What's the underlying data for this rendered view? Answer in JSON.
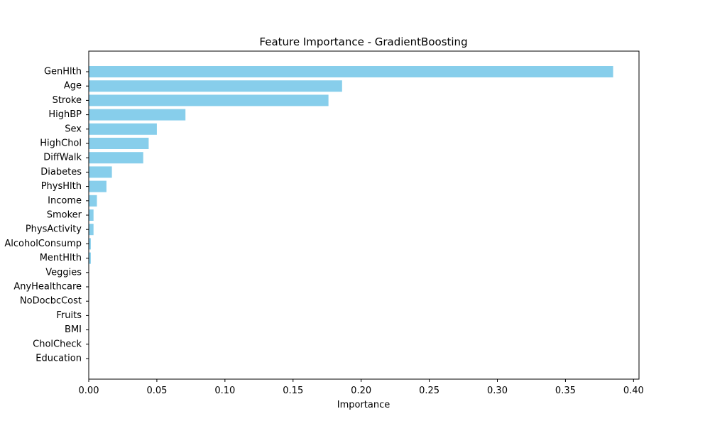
{
  "chart_data": {
    "type": "bar",
    "orientation": "horizontal",
    "title": "Feature Importance - GradientBoosting",
    "xlabel": "Importance",
    "ylabel": "",
    "xlim": [
      0.0,
      0.404
    ],
    "xticks": [
      "0.00",
      "0.05",
      "0.10",
      "0.15",
      "0.20",
      "0.25",
      "0.30",
      "0.35",
      "0.40"
    ],
    "grid": false,
    "bar_color": "#87CEEB",
    "categories": [
      "GenHlth",
      "Age",
      "Stroke",
      "HighBP",
      "Sex",
      "HighChol",
      "DiffWalk",
      "Diabetes",
      "PhysHlth",
      "Income",
      "Smoker",
      "PhysActivity",
      "AlcoholConsump",
      "MentHlth",
      "Veggies",
      "AnyHealthcare",
      "NoDocbcCost",
      "Fruits",
      "BMI",
      "CholCheck",
      "Education"
    ],
    "values": [
      0.385,
      0.186,
      0.176,
      0.071,
      0.05,
      0.044,
      0.04,
      0.017,
      0.013,
      0.006,
      0.0035,
      0.0035,
      0.0015,
      0.0015,
      0.0002,
      0.0001,
      0.0001,
      0.0001,
      0.0001,
      0.0,
      0.0
    ]
  }
}
